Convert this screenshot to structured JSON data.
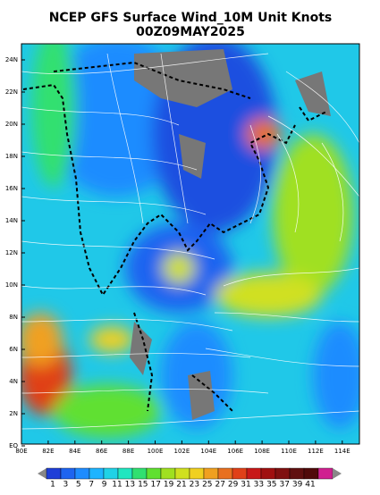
{
  "header": {
    "title": "NCEP GFS Surface Wind_10M Unit Knots",
    "subtitle": "00Z09MAY2025"
  },
  "axes": {
    "y_labels": [
      "24N",
      "22N",
      "20N",
      "18N",
      "16N",
      "14N",
      "12N",
      "10N",
      "8N",
      "6N",
      "4N",
      "2N",
      "EQ"
    ],
    "x_labels": [
      "80E",
      "82E",
      "84E",
      "86E",
      "88E",
      "100E",
      "102E",
      "104E",
      "106E",
      "108E",
      "110E",
      "112E",
      "114E"
    ]
  },
  "colorbar": {
    "labels": [
      1,
      3,
      5,
      7,
      9,
      11,
      13,
      15,
      17,
      19,
      21,
      23,
      25,
      27,
      29,
      31,
      33,
      35,
      37,
      39,
      41
    ],
    "colors": [
      "#1f3fd8",
      "#1e64f0",
      "#1e8cff",
      "#1eb4ff",
      "#20d2e6",
      "#20e6c0",
      "#30e070",
      "#60e030",
      "#a0e020",
      "#d0e020",
      "#f0d020",
      "#f0a020",
      "#e87020",
      "#e04018",
      "#c81818",
      "#a01010",
      "#801010",
      "#601010",
      "#500a0a",
      "#d02090"
    ]
  }
}
